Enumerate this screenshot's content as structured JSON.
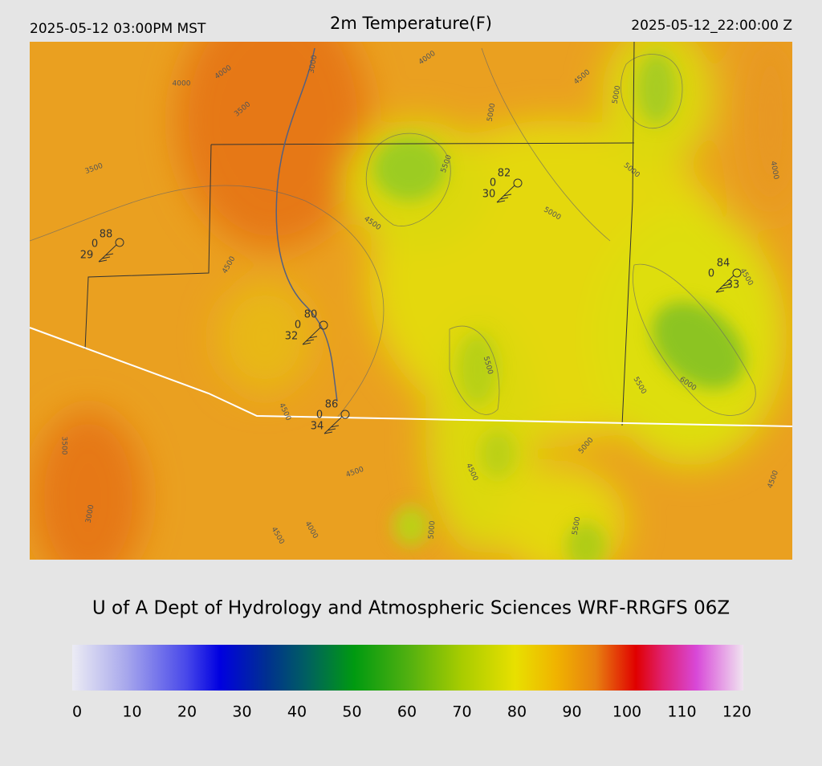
{
  "header": {
    "left": "2025-05-12 03:00PM MST",
    "title": "2m Temperature(F)",
    "right": "2025-05-12_22:00:00 Z"
  },
  "map": {
    "contour_labels": [
      3000,
      4000,
      4000,
      4000,
      4500,
      5000,
      3500,
      5000,
      3500,
      5500,
      5000,
      4000,
      5000,
      4500,
      4500,
      4500,
      5500,
      5500,
      6000,
      4500,
      3500,
      5000,
      4500,
      4500,
      4500,
      3000,
      4000,
      4500,
      5000,
      5500
    ],
    "stations": [
      {
        "temperature": "88",
        "sky_cover": "0",
        "dewpoint": "29"
      },
      {
        "temperature": "82",
        "sky_cover": "0",
        "dewpoint": "30"
      },
      {
        "temperature": "84",
        "sky_cover": "0",
        "dewpoint": "33"
      },
      {
        "temperature": "80",
        "sky_cover": "0",
        "dewpoint": "32"
      },
      {
        "temperature": "86",
        "sky_cover": "0",
        "dewpoint": "34"
      }
    ]
  },
  "credit": "U of A Dept of Hydrology and Atmospheric Sciences WRF-RRGFS 06Z",
  "colorbar": {
    "ticks": [
      0,
      10,
      20,
      30,
      40,
      50,
      60,
      70,
      80,
      90,
      100,
      110,
      120
    ]
  }
}
